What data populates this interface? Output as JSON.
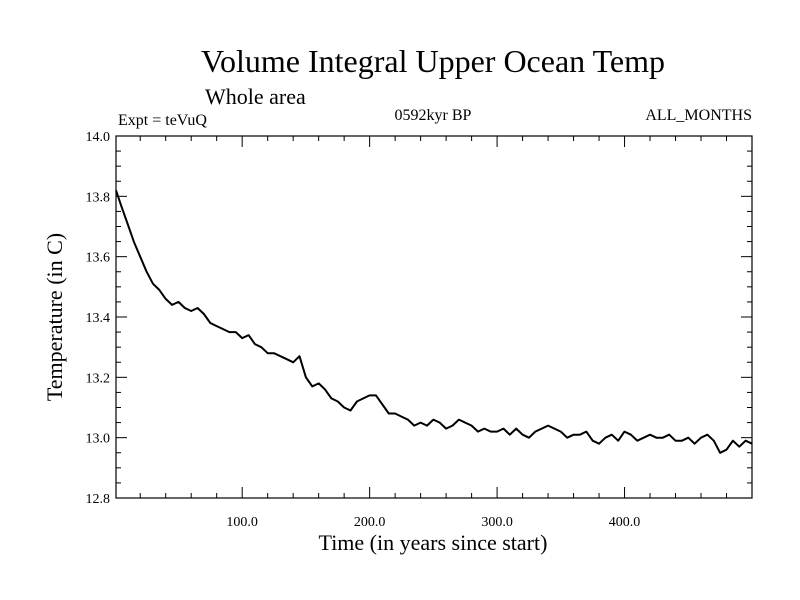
{
  "chart_data": {
    "type": "line",
    "title": "Volume Integral Upper Ocean Temp",
    "subtitle": "Whole area",
    "left_label": "Expt = teVuQ",
    "center_label": "0592kyr BP",
    "right_label": "ALL_MONTHS",
    "xlabel": "Time (in years since start)",
    "ylabel": "Temperature (in C)",
    "xlim": [
      1,
      500
    ],
    "ylim": [
      12.8,
      14.0
    ],
    "x_ticks": [
      100,
      200,
      300,
      400
    ],
    "x_tick_labels": [
      "100.0",
      "200.0",
      "300.0",
      "400.0"
    ],
    "y_ticks": [
      12.8,
      13.0,
      13.2,
      13.4,
      13.6,
      13.8,
      14.0
    ],
    "y_tick_labels": [
      "12.8",
      "13.0",
      "13.2",
      "13.4",
      "13.6",
      "13.8",
      "14.0"
    ],
    "grid": false,
    "series": [
      {
        "color": "#000000",
        "x": [
          1,
          5,
          10,
          15,
          20,
          25,
          30,
          35,
          40,
          45,
          50,
          55,
          60,
          65,
          70,
          75,
          80,
          85,
          90,
          95,
          100,
          105,
          110,
          115,
          120,
          125,
          130,
          135,
          140,
          145,
          150,
          155,
          160,
          165,
          170,
          175,
          180,
          185,
          190,
          195,
          200,
          205,
          210,
          215,
          220,
          225,
          230,
          235,
          240,
          245,
          250,
          255,
          260,
          265,
          270,
          275,
          280,
          285,
          290,
          295,
          300,
          305,
          310,
          315,
          320,
          325,
          330,
          335,
          340,
          345,
          350,
          355,
          360,
          365,
          370,
          375,
          380,
          385,
          390,
          395,
          400,
          405,
          410,
          415,
          420,
          425,
          430,
          435,
          440,
          445,
          450,
          455,
          460,
          465,
          470,
          475,
          480,
          485,
          490,
          495,
          500
        ],
        "values": [
          13.82,
          13.77,
          13.71,
          13.65,
          13.6,
          13.55,
          13.51,
          13.49,
          13.46,
          13.44,
          13.45,
          13.43,
          13.42,
          13.43,
          13.41,
          13.38,
          13.37,
          13.36,
          13.35,
          13.35,
          13.33,
          13.34,
          13.31,
          13.3,
          13.28,
          13.28,
          13.27,
          13.26,
          13.25,
          13.27,
          13.2,
          13.17,
          13.18,
          13.16,
          13.13,
          13.12,
          13.1,
          13.09,
          13.12,
          13.13,
          13.14,
          13.14,
          13.11,
          13.08,
          13.08,
          13.07,
          13.06,
          13.04,
          13.05,
          13.04,
          13.06,
          13.05,
          13.03,
          13.04,
          13.06,
          13.05,
          13.04,
          13.02,
          13.03,
          13.02,
          13.02,
          13.03,
          13.01,
          13.03,
          13.01,
          13.0,
          13.02,
          13.03,
          13.04,
          13.03,
          13.02,
          13.0,
          13.01,
          13.01,
          13.02,
          12.99,
          12.98,
          13.0,
          13.01,
          12.99,
          13.02,
          13.01,
          12.99,
          13.0,
          13.01,
          13.0,
          13.0,
          13.01,
          12.99,
          12.99,
          13.0,
          12.98,
          13.0,
          13.01,
          12.99,
          12.95,
          12.96,
          12.99,
          12.97,
          12.99,
          12.98
        ]
      }
    ]
  }
}
